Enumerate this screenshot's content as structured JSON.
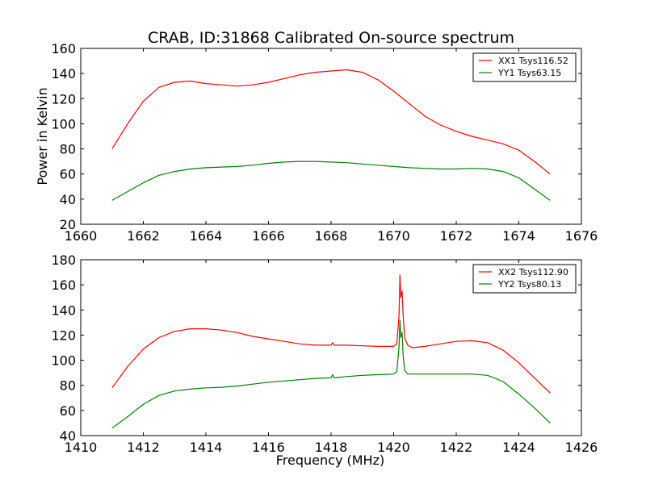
{
  "title": "CRAB, ID:31868 Calibrated On-source spectrum",
  "xlabel": "Frequency (MHz)",
  "ylabel": "Power in Kelvin",
  "colors": {
    "xx": "#ff0000",
    "yy": "#008000",
    "axes": "#000000",
    "background": "#ffffff"
  },
  "chart_data": [
    {
      "type": "line",
      "title": "CRAB, ID:31868 Calibrated On-source spectrum",
      "xlabel": "",
      "ylabel": "Power in Kelvin",
      "xlim": [
        1660,
        1676
      ],
      "ylim": [
        20,
        160
      ],
      "xticks": [
        "1660",
        "1662",
        "1664",
        "1666",
        "1668",
        "1670",
        "1672",
        "1674",
        "1676"
      ],
      "yticks": [
        "20",
        "40",
        "60",
        "80",
        "100",
        "120",
        "140",
        "160"
      ],
      "grid": false,
      "legend_position": "top-right",
      "series": [
        {
          "name": "XX1 Tsys116.52",
          "color": "#ff0000",
          "x": [
            1661.0,
            1661.5,
            1662.0,
            1662.5,
            1663.0,
            1663.5,
            1664.0,
            1664.5,
            1665.0,
            1665.5,
            1666.0,
            1666.5,
            1667.0,
            1667.5,
            1668.0,
            1668.5,
            1669.0,
            1669.5,
            1670.0,
            1670.5,
            1671.0,
            1671.5,
            1672.0,
            1672.5,
            1673.0,
            1673.5,
            1674.0,
            1674.5,
            1675.0
          ],
          "y": [
            80,
            100,
            118,
            129,
            133,
            134,
            132,
            131,
            130,
            131,
            133,
            136,
            139,
            141,
            142,
            143,
            141,
            135,
            126,
            116,
            106,
            99,
            94,
            90,
            87,
            84,
            79,
            70,
            60
          ]
        },
        {
          "name": "YY1 Tsys63.15",
          "color": "#008000",
          "x": [
            1661.0,
            1661.5,
            1662.0,
            1662.5,
            1663.0,
            1663.5,
            1664.0,
            1664.5,
            1665.0,
            1665.5,
            1666.0,
            1666.5,
            1667.0,
            1667.5,
            1668.0,
            1668.5,
            1669.0,
            1669.5,
            1670.0,
            1670.5,
            1671.0,
            1671.5,
            1672.0,
            1672.5,
            1673.0,
            1673.5,
            1674.0,
            1674.5,
            1675.0
          ],
          "y": [
            39,
            46,
            53,
            59,
            62,
            64,
            65,
            65.5,
            66,
            67,
            68.5,
            69.5,
            70,
            70,
            69.5,
            69,
            68,
            67,
            66,
            65,
            64.5,
            64,
            64,
            64.5,
            64,
            62,
            57,
            48,
            39
          ]
        }
      ]
    },
    {
      "type": "line",
      "title": "",
      "xlabel": "Frequency (MHz)",
      "ylabel": "",
      "xlim": [
        1410,
        1426
      ],
      "ylim": [
        40,
        180
      ],
      "xticks": [
        "1410",
        "1412",
        "1414",
        "1416",
        "1418",
        "1420",
        "1422",
        "1424",
        "1426"
      ],
      "yticks": [
        "40",
        "60",
        "80",
        "100",
        "120",
        "140",
        "160",
        "180"
      ],
      "grid": false,
      "legend_position": "top-right",
      "series": [
        {
          "name": "XX2 Tsys112.90",
          "color": "#ff0000",
          "x": [
            1411.0,
            1411.5,
            1412.0,
            1412.5,
            1413.0,
            1413.5,
            1414.0,
            1414.5,
            1415.0,
            1415.5,
            1416.0,
            1416.5,
            1417.0,
            1417.5,
            1418.0,
            1418.05,
            1418.1,
            1418.5,
            1419.0,
            1419.5,
            1420.0,
            1420.1,
            1420.17,
            1420.2,
            1420.23,
            1420.27,
            1420.3,
            1420.35,
            1420.45,
            1420.6,
            1421.0,
            1421.5,
            1422.0,
            1422.5,
            1423.0,
            1423.5,
            1424.0,
            1424.5,
            1425.0
          ],
          "y": [
            78,
            95,
            109,
            118,
            123,
            125,
            125,
            124,
            122,
            119,
            117,
            115,
            113,
            112,
            112,
            114,
            112,
            112,
            111.5,
            111,
            111,
            113,
            135,
            168,
            150,
            155,
            138,
            118,
            112,
            110,
            111,
            113,
            115,
            115.5,
            114,
            108,
            98,
            86,
            74
          ]
        },
        {
          "name": "YY2 Tsys80.13",
          "color": "#008000",
          "x": [
            1411.0,
            1411.5,
            1412.0,
            1412.5,
            1413.0,
            1413.5,
            1414.0,
            1414.5,
            1415.0,
            1415.5,
            1416.0,
            1416.5,
            1417.0,
            1417.5,
            1418.0,
            1418.05,
            1418.1,
            1418.5,
            1419.0,
            1419.5,
            1420.0,
            1420.1,
            1420.17,
            1420.2,
            1420.23,
            1420.27,
            1420.3,
            1420.35,
            1420.45,
            1420.6,
            1421.0,
            1421.5,
            1422.0,
            1422.5,
            1423.0,
            1423.5,
            1424.0,
            1424.5,
            1425.0
          ],
          "y": [
            46,
            55,
            65,
            72,
            75.5,
            77,
            78,
            78.5,
            79.5,
            81,
            82.5,
            83.5,
            84.5,
            85.5,
            86,
            88.5,
            86,
            87,
            88,
            88.5,
            89,
            91,
            110,
            132,
            118,
            122,
            105,
            92,
            89,
            89,
            89,
            89,
            89,
            89,
            88,
            83,
            73,
            62,
            50
          ]
        }
      ]
    }
  ]
}
